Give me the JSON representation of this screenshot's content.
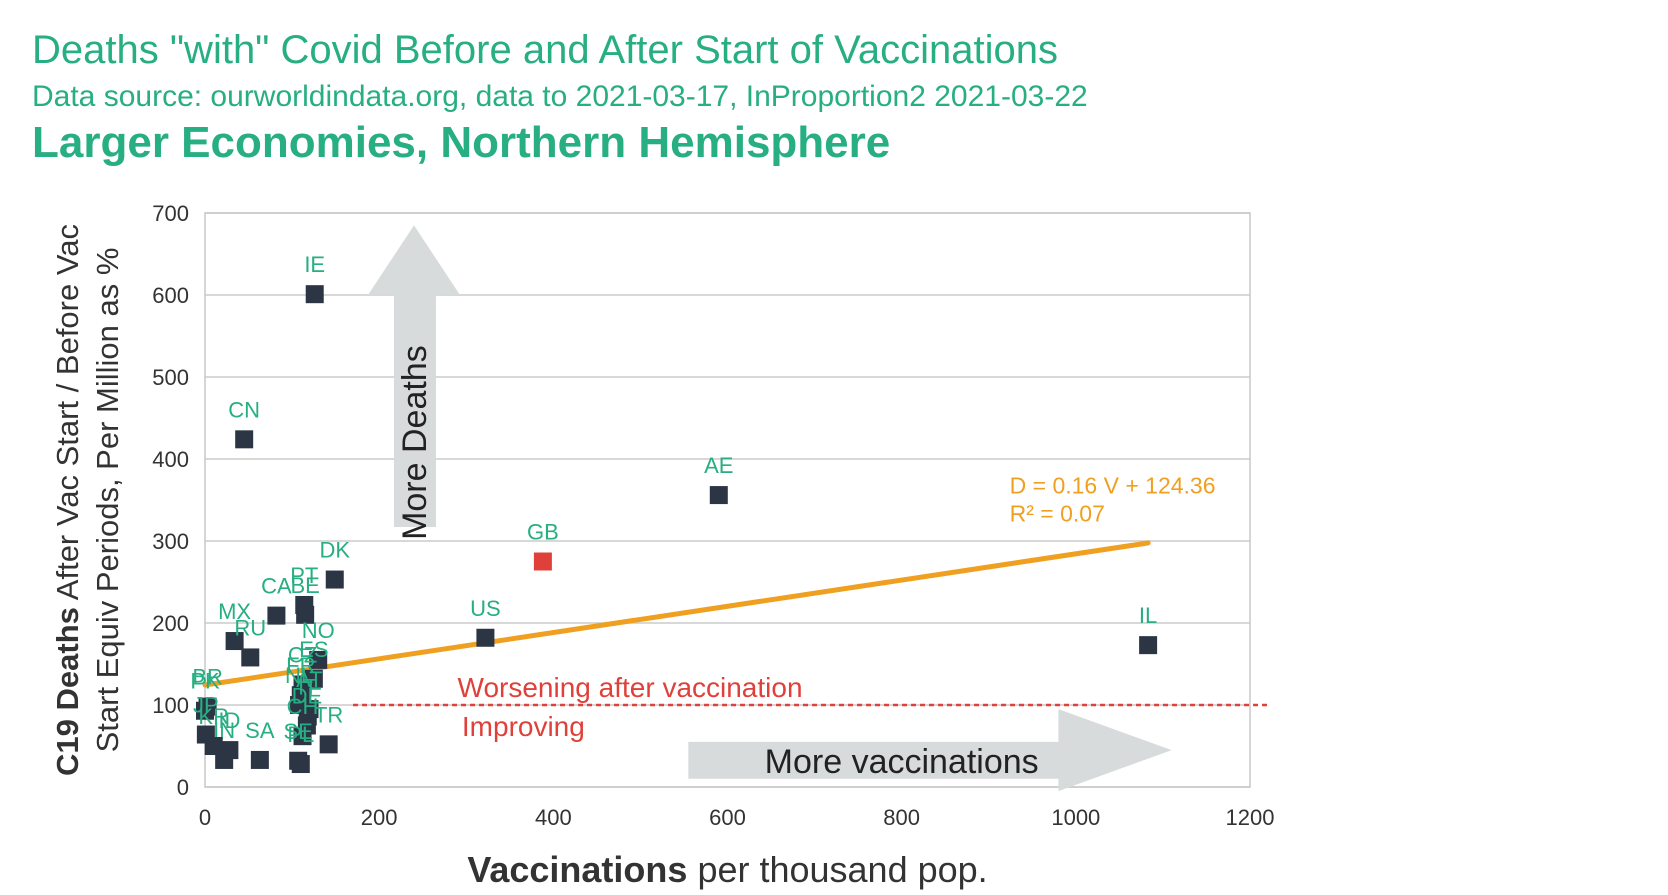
{
  "header": {
    "title": "Deaths \"with\" Covid Before and After Start of Vaccinations",
    "source": "Data source: ourworldindata.org, data to 2021-03-17, InProportion2 2021-03-22",
    "subtitle": "Larger Economies, Northern Hemisphere"
  },
  "chart_data": {
    "type": "scatter",
    "xlabel_bold": "Vaccinations",
    "xlabel_rest": " per thousand pop.",
    "ylabel_line1_bold": "C19 Deaths",
    "ylabel_line1_rest": " After Vac Start / Before Vac",
    "ylabel_line2": "Start Equiv Periods, Per Million as %",
    "xlim": [
      0,
      1200
    ],
    "ylim": [
      0,
      700
    ],
    "xticks": [
      0,
      200,
      400,
      600,
      800,
      1000,
      1200
    ],
    "yticks": [
      0,
      100,
      200,
      300,
      400,
      500,
      600,
      700
    ],
    "grid": "horizontal",
    "points": [
      {
        "label": "IE",
        "x": 126,
        "y": 601,
        "color": "#2b3544"
      },
      {
        "label": "CN",
        "x": 45,
        "y": 424,
        "color": "#2b3544"
      },
      {
        "label": "AE",
        "x": 590,
        "y": 356,
        "color": "#2b3544"
      },
      {
        "label": "GB",
        "x": 388,
        "y": 275,
        "color": "#e0403a"
      },
      {
        "label": "DK",
        "x": 149,
        "y": 253,
        "color": "#2b3544"
      },
      {
        "label": "PT",
        "x": 114,
        "y": 222,
        "color": "#2b3544"
      },
      {
        "label": "BE",
        "x": 115,
        "y": 210,
        "color": "#2b3544"
      },
      {
        "label": "CA",
        "x": 82,
        "y": 209,
        "color": "#2b3544"
      },
      {
        "label": "US",
        "x": 322,
        "y": 182,
        "color": "#2b3544"
      },
      {
        "label": "IL",
        "x": 1083,
        "y": 173,
        "color": "#2b3544"
      },
      {
        "label": "MX",
        "x": 34,
        "y": 178,
        "color": "#2b3544"
      },
      {
        "label": "RU",
        "x": 52,
        "y": 158,
        "color": "#2b3544"
      },
      {
        "label": "NO",
        "x": 130,
        "y": 155,
        "color": "#2b3544"
      },
      {
        "label": "CZ",
        "x": 112,
        "y": 125,
        "color": "#2b3544"
      },
      {
        "label": "ES",
        "x": 125,
        "y": 132,
        "color": "#2b3544"
      },
      {
        "label": "FR",
        "x": 110,
        "y": 112,
        "color": "#2b3544"
      },
      {
        "label": "NL",
        "x": 108,
        "y": 100,
        "color": "#2b3544"
      },
      {
        "label": "AT",
        "x": 120,
        "y": 95,
        "color": "#2b3544"
      },
      {
        "label": "IT",
        "x": 118,
        "y": 86,
        "color": "#2b3544"
      },
      {
        "label": "TR",
        "x": 142,
        "y": 52,
        "color": "#2b3544"
      },
      {
        "label": "DE",
        "x": 117,
        "y": 75,
        "color": "#2b3544"
      },
      {
        "label": "CH",
        "x": 112,
        "y": 62,
        "color": "#2b3544"
      },
      {
        "label": "SA",
        "x": 63,
        "y": 33,
        "color": "#2b3544"
      },
      {
        "label": "ID",
        "x": 28,
        "y": 45,
        "color": "#2b3544"
      },
      {
        "label": "IN",
        "x": 22,
        "y": 33,
        "color": "#2b3544"
      },
      {
        "label": "BR",
        "x": 3,
        "y": 98,
        "color": "#2b3544"
      },
      {
        "label": "PK",
        "x": 0,
        "y": 93,
        "color": "#2b3544"
      },
      {
        "label": "JP",
        "x": 1,
        "y": 64,
        "color": "#2b3544"
      },
      {
        "label": "KR",
        "x": 10,
        "y": 50,
        "color": "#2b3544"
      },
      {
        "label": "SE",
        "x": 107,
        "y": 32,
        "color": "#2b3544"
      },
      {
        "label": "PL",
        "x": 110,
        "y": 28,
        "color": "#2b3544"
      }
    ],
    "trendline": {
      "slope": 0.16,
      "intercept": 124.36,
      "x_from": 0,
      "x_to": 1083,
      "color": "#f0a020",
      "equation": "D = 0.16 V + 124.36",
      "r2": "R² = 0.07"
    },
    "reference_line": {
      "y": 100,
      "color": "#e0403a",
      "label_above": "Worsening after vaccination",
      "label_below": "Improving"
    },
    "annotations": {
      "up_arrow": "More Deaths",
      "right_arrow": "More vaccinations"
    },
    "colors": {
      "label": "#27ae82",
      "grid": "#cccccc",
      "axis_text": "#333333"
    }
  }
}
